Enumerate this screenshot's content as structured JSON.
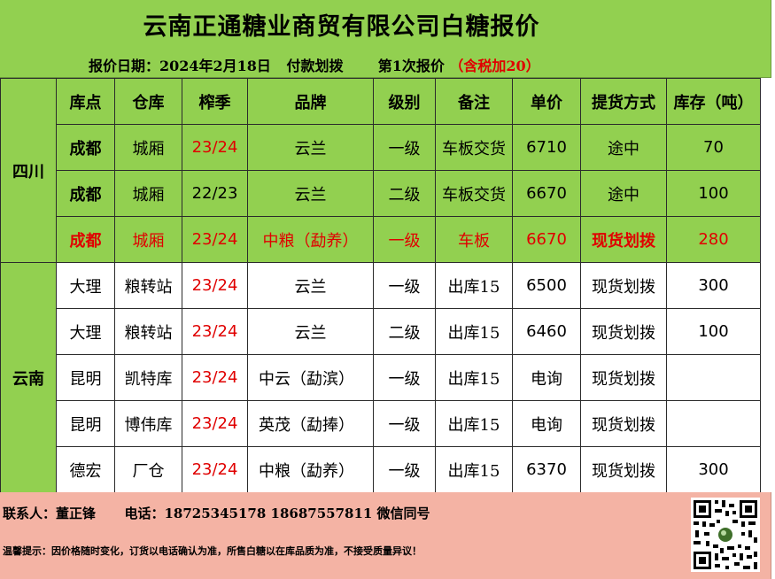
{
  "header": {
    "title": "云南正通糖业商贸有限公司白糖报价",
    "date_label": "报价日期：2024年2月18日",
    "payment": "付款划拨",
    "round": "第1次报价",
    "tax_note": "（含税加20）"
  },
  "table": {
    "columns": [
      "库点",
      "仓库",
      "榨季",
      "品牌",
      "级别",
      "备注",
      "单价",
      "提货方式",
      "库存（吨）"
    ],
    "regions": [
      "四川",
      "云南"
    ],
    "rows": [
      {
        "depot": "成都",
        "warehouse": "城厢",
        "season": "23/24",
        "brand": "云兰",
        "grade": "一级",
        "note": "车板交货",
        "price": "6710",
        "method": "途中",
        "stock": "70"
      },
      {
        "depot": "成都",
        "warehouse": "城厢",
        "season": "22/23",
        "brand": "云兰",
        "grade": "二级",
        "note": "车板交货",
        "price": "6670",
        "method": "途中",
        "stock": "100"
      },
      {
        "depot": "成都",
        "warehouse": "城厢",
        "season": "23/24",
        "brand": "中粮（勐养）",
        "grade": "一级",
        "note": "车板",
        "price": "6670",
        "method": "现货划拨",
        "stock": "280"
      },
      {
        "depot": "大理",
        "warehouse": "粮转站",
        "season": "23/24",
        "brand": "云兰",
        "grade": "一级",
        "note": "出库15",
        "price": "6500",
        "method": "现货划拨",
        "stock": "300"
      },
      {
        "depot": "大理",
        "warehouse": "粮转站",
        "season": "23/24",
        "brand": "云兰",
        "grade": "二级",
        "note": "出库15",
        "price": "6460",
        "method": "现货划拨",
        "stock": "100"
      },
      {
        "depot": "昆明",
        "warehouse": "凯特库",
        "season": "23/24",
        "brand": "中云（勐滨）",
        "grade": "一级",
        "note": "出库15",
        "price": "电询",
        "method": "现货划拨",
        "stock": ""
      },
      {
        "depot": "昆明",
        "warehouse": "博伟库",
        "season": "23/24",
        "brand": "英茂（勐捧）",
        "grade": "一级",
        "note": "出库15",
        "price": "电询",
        "method": "现货划拨",
        "stock": ""
      },
      {
        "depot": "德宏",
        "warehouse": "厂仓",
        "season": "23/24",
        "brand": "中粮（勐养）",
        "grade": "一级",
        "note": "出库15",
        "price": "6370",
        "method": "现货划拨",
        "stock": "300"
      }
    ]
  },
  "footer": {
    "contact": "联系人：董正锋",
    "phone": "电话：18725345178 18687557811 微信同号",
    "tip": "温馨提示：因价格随时变化，订货以电话确认为准，所售白糖以在库品质为准，不接受质量异议！"
  },
  "colors": {
    "green": "#92d050",
    "salmon": "#f4b3a4",
    "red": "#e00000"
  }
}
